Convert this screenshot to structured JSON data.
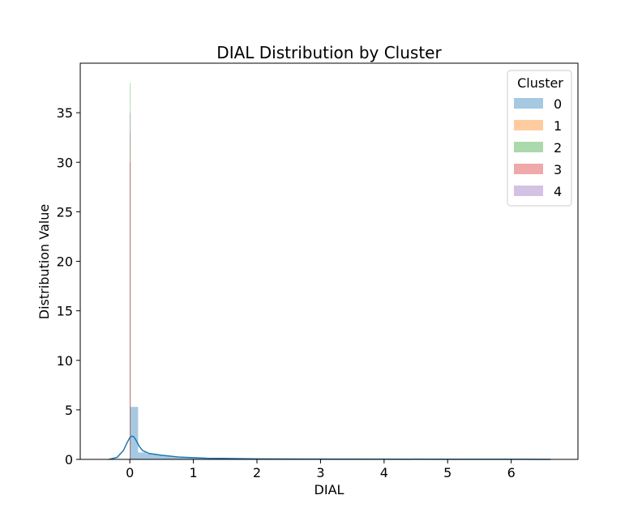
{
  "chart_data": {
    "type": "bar",
    "title": "DIAL Distribution by Cluster",
    "xlabel": "DIAL",
    "ylabel": "Distribution Value",
    "xlim": [
      -0.78,
      7.05
    ],
    "ylim": [
      0,
      40
    ],
    "xticks": [
      0,
      1,
      2,
      3,
      4,
      5,
      6
    ],
    "yticks": [
      0,
      5,
      10,
      15,
      20,
      25,
      30,
      35
    ],
    "grid": false,
    "legend": {
      "title": "Cluster",
      "placement": "top-right",
      "entries": [
        "0",
        "1",
        "2",
        "3",
        "4"
      ]
    },
    "series": [
      {
        "name": "0",
        "color": "#1f77b4",
        "bin_width": 0.13,
        "bin_start": 0.0,
        "values": [
          5.3,
          0.7,
          0.55,
          0.45,
          0.35,
          0.25,
          0.18,
          0.14,
          0.11,
          0.09,
          0.08,
          0.07,
          0.06,
          0.05,
          0.05,
          0.04,
          0.04,
          0.03,
          0.03,
          0.03,
          0.02,
          0.02,
          0.02,
          0.02,
          0.02,
          0.02,
          0.02,
          0.02,
          0.02,
          0.02,
          0.02,
          0.02,
          0.02,
          0.02,
          0.02,
          0.02,
          0.02,
          0.02,
          0.02,
          0.02,
          0.02,
          0.02,
          0.02,
          0.02,
          0.02,
          0.02,
          0.02,
          0.02,
          0.02,
          0.02
        ],
        "kde": {
          "x": [
            -0.33,
            -0.2,
            -0.1,
            -0.05,
            0.0,
            0.03,
            0.06,
            0.1,
            0.15,
            0.2,
            0.3,
            0.5,
            0.8,
            1.2,
            2.0,
            3.0,
            4.0,
            5.0,
            6.0,
            6.62
          ],
          "y": [
            0.0,
            0.2,
            0.9,
            1.6,
            2.2,
            2.35,
            2.3,
            1.9,
            1.3,
            0.9,
            0.6,
            0.42,
            0.22,
            0.12,
            0.05,
            0.03,
            0.02,
            0.01,
            0.01,
            0.0
          ]
        }
      },
      {
        "name": "1",
        "color": "#ff7f0e",
        "bin_width": 0.012,
        "bin_start": 0.0,
        "values": [
          33.0
        ]
      },
      {
        "name": "2",
        "color": "#2ca02c",
        "bin_width": 0.012,
        "bin_start": 0.0,
        "values": [
          38.0
        ]
      },
      {
        "name": "3",
        "color": "#d62728",
        "bin_width": 0.012,
        "bin_start": 0.0,
        "values": [
          30.0
        ]
      },
      {
        "name": "4",
        "color": "#9467bd",
        "bin_width": 0.012,
        "bin_start": 0.0,
        "values": [
          35.0
        ]
      }
    ]
  }
}
